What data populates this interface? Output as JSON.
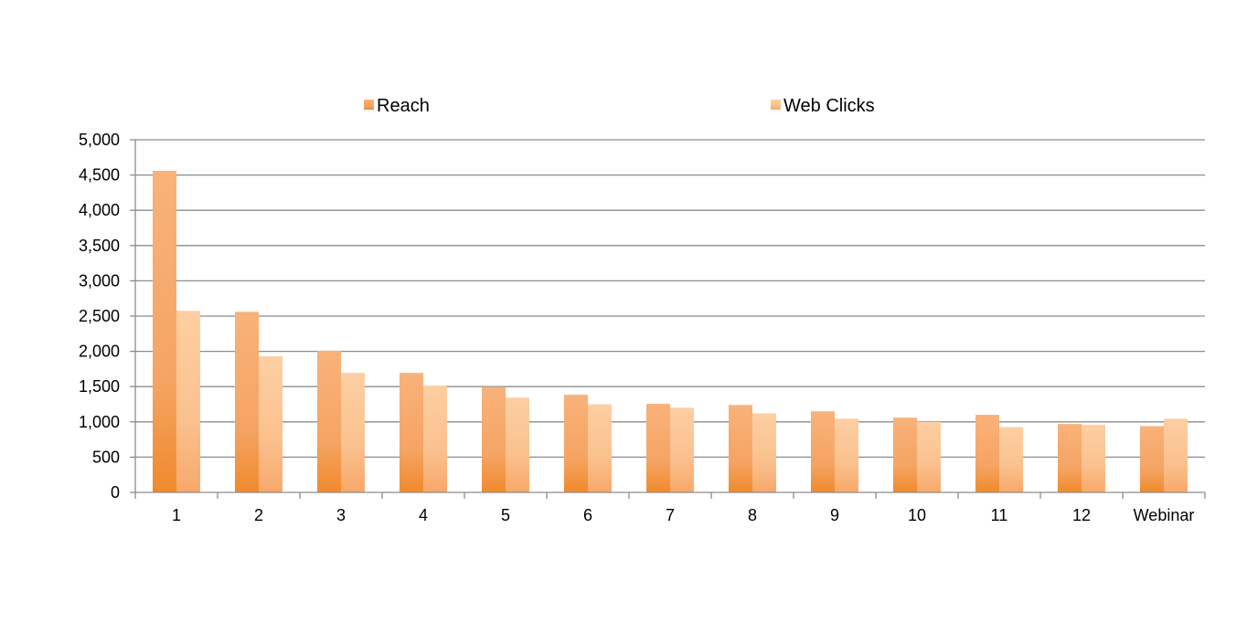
{
  "chart_data": {
    "type": "bar",
    "categories": [
      "1",
      "2",
      "3",
      "4",
      "5",
      "6",
      "7",
      "8",
      "9",
      "10",
      "11",
      "12",
      "Webinar"
    ],
    "series": [
      {
        "name": "Reach",
        "values": [
          4560,
          2560,
          2010,
          1695,
          1495,
          1385,
          1255,
          1240,
          1150,
          1060,
          1100,
          970,
          940
        ],
        "color": "#f5a05a"
      },
      {
        "name": "Web Clicks",
        "values": [
          2575,
          1930,
          1695,
          1515,
          1345,
          1250,
          1200,
          1120,
          1045,
          1000,
          925,
          960,
          1045
        ],
        "color": "#fbc08c"
      }
    ],
    "ylim": [
      0,
      5000
    ],
    "yticks": [
      "0",
      "500",
      "1,000",
      "1,500",
      "2,000",
      "2,500",
      "3,000",
      "3,500",
      "4,000",
      "4,500",
      "5,000"
    ],
    "ytick_values": [
      0,
      500,
      1000,
      1500,
      2000,
      2500,
      3000,
      3500,
      4000,
      4500,
      5000
    ],
    "grid": true,
    "legend_position": "top",
    "title": "",
    "xlabel": "",
    "ylabel": ""
  }
}
